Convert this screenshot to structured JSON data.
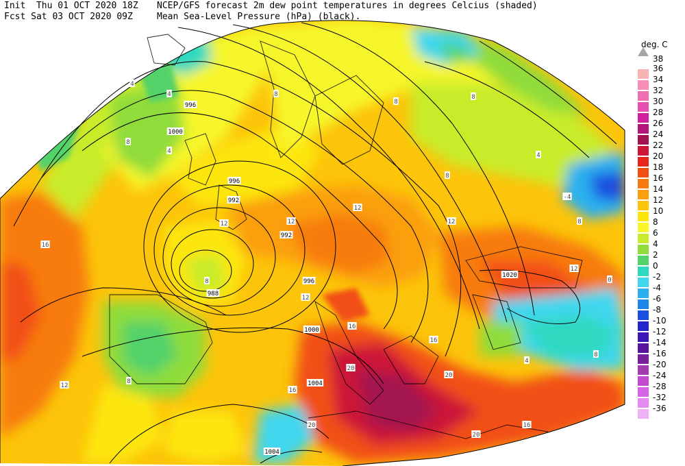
{
  "header": {
    "line1_left": "Init  Thu 01 OCT 2020 18Z",
    "line2_left": "Fcst Sat 03 OCT 2020 09Z",
    "line1_right": "NCEP/GFS forecast 2m dew point temperatures in degrees Celcius (shaded)",
    "line2_right": "Mean Sea-Level Pressure (hPa) (black)."
  },
  "legend": {
    "unit": "deg. C",
    "top_label": "38",
    "arrow_color": "#a6a6a6",
    "entries": [
      {
        "label": "36",
        "color": "#f9b3b3"
      },
      {
        "label": "34",
        "color": "#f58fb6"
      },
      {
        "label": "32",
        "color": "#ef6fb1"
      },
      {
        "label": "30",
        "color": "#e84fb3"
      },
      {
        "label": "28",
        "color": "#d21f9e"
      },
      {
        "label": "26",
        "color": "#b3157a"
      },
      {
        "label": "24",
        "color": "#a3124f"
      },
      {
        "label": "22",
        "color": "#cc1637"
      },
      {
        "label": "20",
        "color": "#e8251c"
      },
      {
        "label": "18",
        "color": "#f24f13"
      },
      {
        "label": "16",
        "color": "#f77b0f"
      },
      {
        "label": "14",
        "color": "#fb9f0c"
      },
      {
        "label": "12",
        "color": "#fcc40a"
      },
      {
        "label": "10",
        "color": "#fde60b"
      },
      {
        "label": "8",
        "color": "#f6f62a"
      },
      {
        "label": "6",
        "color": "#c8ec2c"
      },
      {
        "label": "4",
        "color": "#8fdc3a"
      },
      {
        "label": "2",
        "color": "#52d26a"
      },
      {
        "label": "0",
        "color": "#2fd9c0"
      },
      {
        "label": "-2",
        "color": "#3fd7ee"
      },
      {
        "label": "-4",
        "color": "#2ab0f0"
      },
      {
        "label": "-6",
        "color": "#1e86ea"
      },
      {
        "label": "-8",
        "color": "#1b4fdf"
      },
      {
        "label": "-10",
        "color": "#2326c8"
      },
      {
        "label": "-12",
        "color": "#3b17b7"
      },
      {
        "label": "-14",
        "color": "#5a159f"
      },
      {
        "label": "-16",
        "color": "#7a1f9b"
      },
      {
        "label": "-20",
        "color": "#a23bb0"
      },
      {
        "label": "-24",
        "color": "#c04bd0"
      },
      {
        "label": "-28",
        "color": "#d764e8"
      },
      {
        "label": "-32",
        "color": "#e68bf1"
      },
      {
        "label": "-36",
        "color": "#f0b0f6"
      }
    ]
  },
  "map": {
    "isobar_labels": [
      "996",
      "1000",
      "996",
      "992",
      "992",
      "988",
      "996",
      "1000",
      "1004",
      "1004",
      "1020"
    ],
    "dewpoint_labels": [
      "4",
      "4",
      "4",
      "8",
      "8",
      "8",
      "12",
      "12",
      "12",
      "12",
      "16",
      "16",
      "16",
      "16",
      "20",
      "20",
      "20",
      "8",
      "8",
      "8",
      "12",
      "-4",
      "0",
      "4",
      "8",
      "12",
      "16",
      "20",
      "8",
      "12",
      "4",
      "8"
    ]
  }
}
